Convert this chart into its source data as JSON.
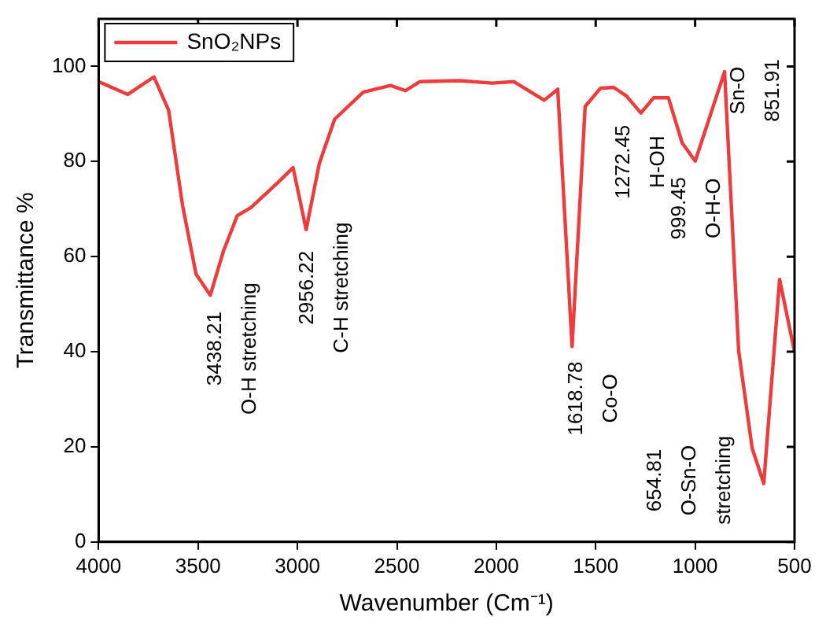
{
  "chart_data": {
    "type": "line",
    "xlabel": "Wavenumber (Cm⁻¹)",
    "ylabel": "Transmittance %",
    "xlim": [
      4000,
      500
    ],
    "xticks": [
      4000,
      3500,
      3000,
      2500,
      2000,
      1500,
      1000,
      500
    ],
    "ylim": [
      0,
      110
    ],
    "yticks": [
      0,
      20,
      40,
      60,
      80,
      100
    ],
    "grid": false,
    "legend": "top left",
    "marker": "none",
    "line_style": "solid",
    "series": [
      {
        "name": "SnO₂NPs",
        "color": "#ee3b3b",
        "x": [
          4000,
          3854,
          3722,
          3648,
          3578,
          3510,
          3438.21,
          3372,
          3303,
          3234,
          3096,
          3022,
          2956.22,
          2890,
          2813,
          2669,
          2532,
          2457,
          2385,
          2187,
          2021,
          1911,
          1759,
          1691,
          1618.78,
          1553,
          1476,
          1410,
          1346,
          1272.45,
          1209,
          1134,
          1065,
          999.45,
          851.91,
          781,
          713,
          654.81,
          575,
          500
        ],
        "values": [
          96.8,
          94.1,
          97.8,
          90.8,
          70.8,
          56.3,
          51.9,
          61.2,
          68.6,
          70.3,
          75.7,
          78.7,
          65.7,
          79.6,
          88.9,
          94.6,
          96,
          94.9,
          96.8,
          97,
          96.5,
          96.8,
          92.9,
          95.2,
          41.1,
          91.6,
          95.4,
          95.6,
          93.8,
          90.2,
          93.4,
          93.4,
          83.9,
          80.1,
          98.9,
          40.2,
          19.7,
          12.3,
          55.2,
          40
        ]
      }
    ],
    "annotations": [
      {
        "text": "3438.21\nO-H stretching",
        "x": 3438.21,
        "y": 51.9
      },
      {
        "text": "2956.22\nC-H stretching",
        "x": 2956.22,
        "y": 65.7
      },
      {
        "text": "1618.78\nCo-O",
        "x": 1618.78,
        "y": 41.1
      },
      {
        "text": "1272.45\nH-OH",
        "x": 1272.45,
        "y": 90.2
      },
      {
        "text": "999.45\nO-H-O",
        "x": 999.45,
        "y": 80.1
      },
      {
        "text": "Sn-O\n851.91",
        "x": 851.91,
        "y": 98.9
      },
      {
        "text": "654.81\nO-Sn-O\nstretching",
        "x": 654.81,
        "y": 12.3
      }
    ]
  }
}
